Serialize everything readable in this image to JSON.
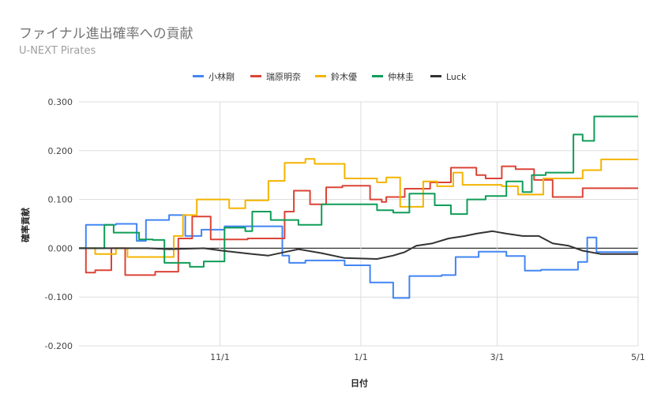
{
  "title": "ファイナル進出確率への貢献",
  "subtitle": "U-NEXT Pirates",
  "chart_data": {
    "type": "line",
    "xlabel": "日付",
    "ylabel": "確率貢献",
    "ylim": [
      -0.2,
      0.3
    ],
    "yticks": [
      -0.2,
      -0.1,
      0.0,
      0.1,
      0.2,
      0.3
    ],
    "ytick_labels": [
      "-0.200",
      "-0.100",
      "0.000",
      "0.100",
      "0.200",
      "0.300"
    ],
    "x_range": [
      "2022-09-01",
      "2023-05-01"
    ],
    "x_ticks": [
      {
        "date": "2022-11-01",
        "label": "11/1"
      },
      {
        "date": "2023-01-01",
        "label": "1/1"
      },
      {
        "date": "2023-03-01",
        "label": "3/1"
      },
      {
        "date": "2023-05-01",
        "label": "5/1"
      }
    ],
    "grid": true,
    "legend": "top",
    "series": [
      {
        "name": "小林剛",
        "color": "#4285f4",
        "points": [
          [
            "2022-09-01",
            0.0
          ],
          [
            "2022-09-04",
            0.0
          ],
          [
            "2022-09-04",
            0.048
          ],
          [
            "2022-09-17",
            0.048
          ],
          [
            "2022-09-17",
            0.05
          ],
          [
            "2022-09-26",
            0.05
          ],
          [
            "2022-09-26",
            0.015
          ],
          [
            "2022-09-30",
            0.015
          ],
          [
            "2022-09-30",
            0.058
          ],
          [
            "2022-10-10",
            0.058
          ],
          [
            "2022-10-10",
            0.068
          ],
          [
            "2022-10-17",
            0.068
          ],
          [
            "2022-10-17",
            0.025
          ],
          [
            "2022-10-24",
            0.025
          ],
          [
            "2022-10-24",
            0.038
          ],
          [
            "2022-11-03",
            0.038
          ],
          [
            "2022-11-03",
            0.045
          ],
          [
            "2022-11-28",
            0.045
          ],
          [
            "2022-11-28",
            -0.015
          ],
          [
            "2022-12-01",
            -0.015
          ],
          [
            "2022-12-01",
            -0.03
          ],
          [
            "2022-12-08",
            -0.03
          ],
          [
            "2022-12-08",
            -0.025
          ],
          [
            "2022-12-25",
            -0.025
          ],
          [
            "2022-12-25",
            -0.035
          ],
          [
            "2023-01-05",
            -0.035
          ],
          [
            "2023-01-05",
            -0.07
          ],
          [
            "2023-01-15",
            -0.07
          ],
          [
            "2023-01-15",
            -0.102
          ],
          [
            "2023-01-22",
            -0.102
          ],
          [
            "2023-01-22",
            -0.057
          ],
          [
            "2023-02-05",
            -0.057
          ],
          [
            "2023-02-05",
            -0.055
          ],
          [
            "2023-02-11",
            -0.055
          ],
          [
            "2023-02-11",
            -0.018
          ],
          [
            "2023-02-21",
            -0.018
          ],
          [
            "2023-02-21",
            -0.007
          ],
          [
            "2023-03-05",
            -0.007
          ],
          [
            "2023-03-05",
            -0.016
          ],
          [
            "2023-03-13",
            -0.016
          ],
          [
            "2023-03-13",
            -0.046
          ],
          [
            "2023-03-20",
            -0.046
          ],
          [
            "2023-03-20",
            -0.044
          ],
          [
            "2023-04-05",
            -0.044
          ],
          [
            "2023-04-05",
            -0.028
          ],
          [
            "2023-04-09",
            -0.028
          ],
          [
            "2023-04-09",
            0.022
          ],
          [
            "2023-04-13",
            0.022
          ],
          [
            "2023-04-13",
            -0.008
          ],
          [
            "2023-05-01",
            -0.008
          ]
        ]
      },
      {
        "name": "瑞原明奈",
        "color": "#db4437",
        "points": [
          [
            "2022-09-01",
            0.0
          ],
          [
            "2022-09-04",
            0.0
          ],
          [
            "2022-09-04",
            -0.05
          ],
          [
            "2022-09-08",
            -0.05
          ],
          [
            "2022-09-08",
            -0.045
          ],
          [
            "2022-09-15",
            -0.045
          ],
          [
            "2022-09-15",
            0.0
          ],
          [
            "2022-09-21",
            0.0
          ],
          [
            "2022-09-21",
            -0.055
          ],
          [
            "2022-10-04",
            -0.055
          ],
          [
            "2022-10-04",
            -0.048
          ],
          [
            "2022-10-14",
            -0.048
          ],
          [
            "2022-10-14",
            0.02
          ],
          [
            "2022-10-20",
            0.02
          ],
          [
            "2022-10-20",
            0.065
          ],
          [
            "2022-10-28",
            0.065
          ],
          [
            "2022-10-28",
            0.018
          ],
          [
            "2022-11-13",
            0.018
          ],
          [
            "2022-11-13",
            0.02
          ],
          [
            "2022-11-29",
            0.02
          ],
          [
            "2022-11-29",
            0.075
          ],
          [
            "2022-12-03",
            0.075
          ],
          [
            "2022-12-03",
            0.118
          ],
          [
            "2022-12-10",
            0.118
          ],
          [
            "2022-12-10",
            0.09
          ],
          [
            "2022-12-17",
            0.09
          ],
          [
            "2022-12-17",
            0.125
          ],
          [
            "2022-12-24",
            0.125
          ],
          [
            "2022-12-24",
            0.128
          ],
          [
            "2023-01-05",
            0.128
          ],
          [
            "2023-01-05",
            0.1
          ],
          [
            "2023-01-10",
            0.1
          ],
          [
            "2023-01-10",
            0.095
          ],
          [
            "2023-01-12",
            0.095
          ],
          [
            "2023-01-12",
            0.105
          ],
          [
            "2023-01-20",
            0.105
          ],
          [
            "2023-01-20",
            0.122
          ],
          [
            "2023-01-31",
            0.122
          ],
          [
            "2023-01-31",
            0.135
          ],
          [
            "2023-02-09",
            0.135
          ],
          [
            "2023-02-09",
            0.165
          ],
          [
            "2023-02-20",
            0.165
          ],
          [
            "2023-02-20",
            0.15
          ],
          [
            "2023-02-24",
            0.15
          ],
          [
            "2023-02-24",
            0.143
          ],
          [
            "2023-03-03",
            0.143
          ],
          [
            "2023-03-03",
            0.168
          ],
          [
            "2023-03-09",
            0.168
          ],
          [
            "2023-03-09",
            0.162
          ],
          [
            "2023-03-17",
            0.162
          ],
          [
            "2023-03-17",
            0.14
          ],
          [
            "2023-03-25",
            0.14
          ],
          [
            "2023-03-25",
            0.105
          ],
          [
            "2023-04-07",
            0.105
          ],
          [
            "2023-04-07",
            0.123
          ],
          [
            "2023-05-01",
            0.123
          ]
        ]
      },
      {
        "name": "鈴木優",
        "color": "#f4b400",
        "points": [
          [
            "2022-09-01",
            0.0
          ],
          [
            "2022-09-08",
            0.0
          ],
          [
            "2022-09-08",
            -0.012
          ],
          [
            "2022-09-17",
            -0.012
          ],
          [
            "2022-09-17",
            0.0
          ],
          [
            "2022-09-22",
            0.0
          ],
          [
            "2022-09-22",
            -0.018
          ],
          [
            "2022-10-12",
            -0.018
          ],
          [
            "2022-10-12",
            0.025
          ],
          [
            "2022-10-16",
            0.025
          ],
          [
            "2022-10-16",
            0.068
          ],
          [
            "2022-10-22",
            0.068
          ],
          [
            "2022-10-22",
            0.1
          ],
          [
            "2022-11-05",
            0.1
          ],
          [
            "2022-11-05",
            0.082
          ],
          [
            "2022-11-12",
            0.082
          ],
          [
            "2022-11-12",
            0.098
          ],
          [
            "2022-11-22",
            0.098
          ],
          [
            "2022-11-22",
            0.138
          ],
          [
            "2022-11-29",
            0.138
          ],
          [
            "2022-11-29",
            0.175
          ],
          [
            "2022-12-08",
            0.175
          ],
          [
            "2022-12-08",
            0.183
          ],
          [
            "2022-12-12",
            0.183
          ],
          [
            "2022-12-12",
            0.173
          ],
          [
            "2022-12-25",
            0.173
          ],
          [
            "2022-12-25",
            0.143
          ],
          [
            "2023-01-08",
            0.143
          ],
          [
            "2023-01-08",
            0.135
          ],
          [
            "2023-01-12",
            0.135
          ],
          [
            "2023-01-12",
            0.145
          ],
          [
            "2023-01-18",
            0.145
          ],
          [
            "2023-01-18",
            0.085
          ],
          [
            "2023-01-28",
            0.085
          ],
          [
            "2023-01-28",
            0.137
          ],
          [
            "2023-02-03",
            0.137
          ],
          [
            "2023-02-03",
            0.127
          ],
          [
            "2023-02-10",
            0.127
          ],
          [
            "2023-02-10",
            0.155
          ],
          [
            "2023-02-14",
            0.155
          ],
          [
            "2023-02-14",
            0.13
          ],
          [
            "2023-03-03",
            0.13
          ],
          [
            "2023-03-03",
            0.127
          ],
          [
            "2023-03-10",
            0.127
          ],
          [
            "2023-03-10",
            0.11
          ],
          [
            "2023-03-21",
            0.11
          ],
          [
            "2023-03-21",
            0.143
          ],
          [
            "2023-04-07",
            0.143
          ],
          [
            "2023-04-07",
            0.16
          ],
          [
            "2023-04-15",
            0.16
          ],
          [
            "2023-04-15",
            0.182
          ],
          [
            "2023-05-01",
            0.182
          ]
        ]
      },
      {
        "name": "仲林圭",
        "color": "#0f9d58",
        "points": [
          [
            "2022-09-01",
            0.0
          ],
          [
            "2022-09-12",
            0.0
          ],
          [
            "2022-09-12",
            0.048
          ],
          [
            "2022-09-16",
            0.048
          ],
          [
            "2022-09-16",
            0.032
          ],
          [
            "2022-09-27",
            0.032
          ],
          [
            "2022-09-27",
            0.018
          ],
          [
            "2022-10-03",
            0.018
          ],
          [
            "2022-10-03",
            0.017
          ],
          [
            "2022-10-08",
            0.017
          ],
          [
            "2022-10-08",
            -0.03
          ],
          [
            "2022-10-19",
            -0.03
          ],
          [
            "2022-10-19",
            -0.038
          ],
          [
            "2022-10-25",
            -0.038
          ],
          [
            "2022-10-25",
            -0.027
          ],
          [
            "2022-11-03",
            -0.027
          ],
          [
            "2022-11-03",
            0.042
          ],
          [
            "2022-11-12",
            0.042
          ],
          [
            "2022-11-12",
            0.035
          ],
          [
            "2022-11-15",
            0.035
          ],
          [
            "2022-11-15",
            0.075
          ],
          [
            "2022-11-23",
            0.075
          ],
          [
            "2022-11-23",
            0.058
          ],
          [
            "2022-12-05",
            0.058
          ],
          [
            "2022-12-05",
            0.048
          ],
          [
            "2022-12-15",
            0.048
          ],
          [
            "2022-12-15",
            0.09
          ],
          [
            "2023-01-08",
            0.09
          ],
          [
            "2023-01-08",
            0.078
          ],
          [
            "2023-01-15",
            0.078
          ],
          [
            "2023-01-15",
            0.073
          ],
          [
            "2023-01-22",
            0.073
          ],
          [
            "2023-01-22",
            0.112
          ],
          [
            "2023-02-02",
            0.112
          ],
          [
            "2023-02-02",
            0.088
          ],
          [
            "2023-02-09",
            0.088
          ],
          [
            "2023-02-09",
            0.07
          ],
          [
            "2023-02-16",
            0.07
          ],
          [
            "2023-02-16",
            0.1
          ],
          [
            "2023-02-24",
            0.1
          ],
          [
            "2023-02-24",
            0.107
          ],
          [
            "2023-03-05",
            0.107
          ],
          [
            "2023-03-05",
            0.137
          ],
          [
            "2023-03-12",
            0.137
          ],
          [
            "2023-03-12",
            0.115
          ],
          [
            "2023-03-16",
            0.115
          ],
          [
            "2023-03-16",
            0.15
          ],
          [
            "2023-03-22",
            0.15
          ],
          [
            "2023-03-22",
            0.155
          ],
          [
            "2023-04-03",
            0.155
          ],
          [
            "2023-04-03",
            0.233
          ],
          [
            "2023-04-07",
            0.233
          ],
          [
            "2023-04-07",
            0.22
          ],
          [
            "2023-04-12",
            0.22
          ],
          [
            "2023-04-12",
            0.27
          ],
          [
            "2023-05-01",
            0.27
          ]
        ]
      },
      {
        "name": "Luck",
        "color": "#333333",
        "points": [
          [
            "2022-09-01",
            0.0
          ],
          [
            "2022-10-01",
            0.0
          ],
          [
            "2022-10-10",
            -0.002
          ],
          [
            "2022-10-25",
            0.0
          ],
          [
            "2022-11-02",
            -0.005
          ],
          [
            "2022-11-15",
            -0.012
          ],
          [
            "2022-11-22",
            -0.015
          ],
          [
            "2022-11-30",
            -0.007
          ],
          [
            "2022-12-05",
            -0.002
          ],
          [
            "2022-12-15",
            -0.01
          ],
          [
            "2022-12-25",
            -0.02
          ],
          [
            "2023-01-08",
            -0.022
          ],
          [
            "2023-01-15",
            -0.015
          ],
          [
            "2023-01-20",
            -0.008
          ],
          [
            "2023-01-25",
            0.005
          ],
          [
            "2023-02-01",
            0.01
          ],
          [
            "2023-02-08",
            0.02
          ],
          [
            "2023-02-15",
            0.025
          ],
          [
            "2023-02-20",
            0.03
          ],
          [
            "2023-02-27",
            0.035
          ],
          [
            "2023-03-05",
            0.03
          ],
          [
            "2023-03-12",
            0.025
          ],
          [
            "2023-03-19",
            0.025
          ],
          [
            "2023-03-25",
            0.01
          ],
          [
            "2023-04-01",
            0.005
          ],
          [
            "2023-04-07",
            -0.005
          ],
          [
            "2023-04-15",
            -0.012
          ],
          [
            "2023-05-01",
            -0.012
          ]
        ]
      }
    ]
  }
}
